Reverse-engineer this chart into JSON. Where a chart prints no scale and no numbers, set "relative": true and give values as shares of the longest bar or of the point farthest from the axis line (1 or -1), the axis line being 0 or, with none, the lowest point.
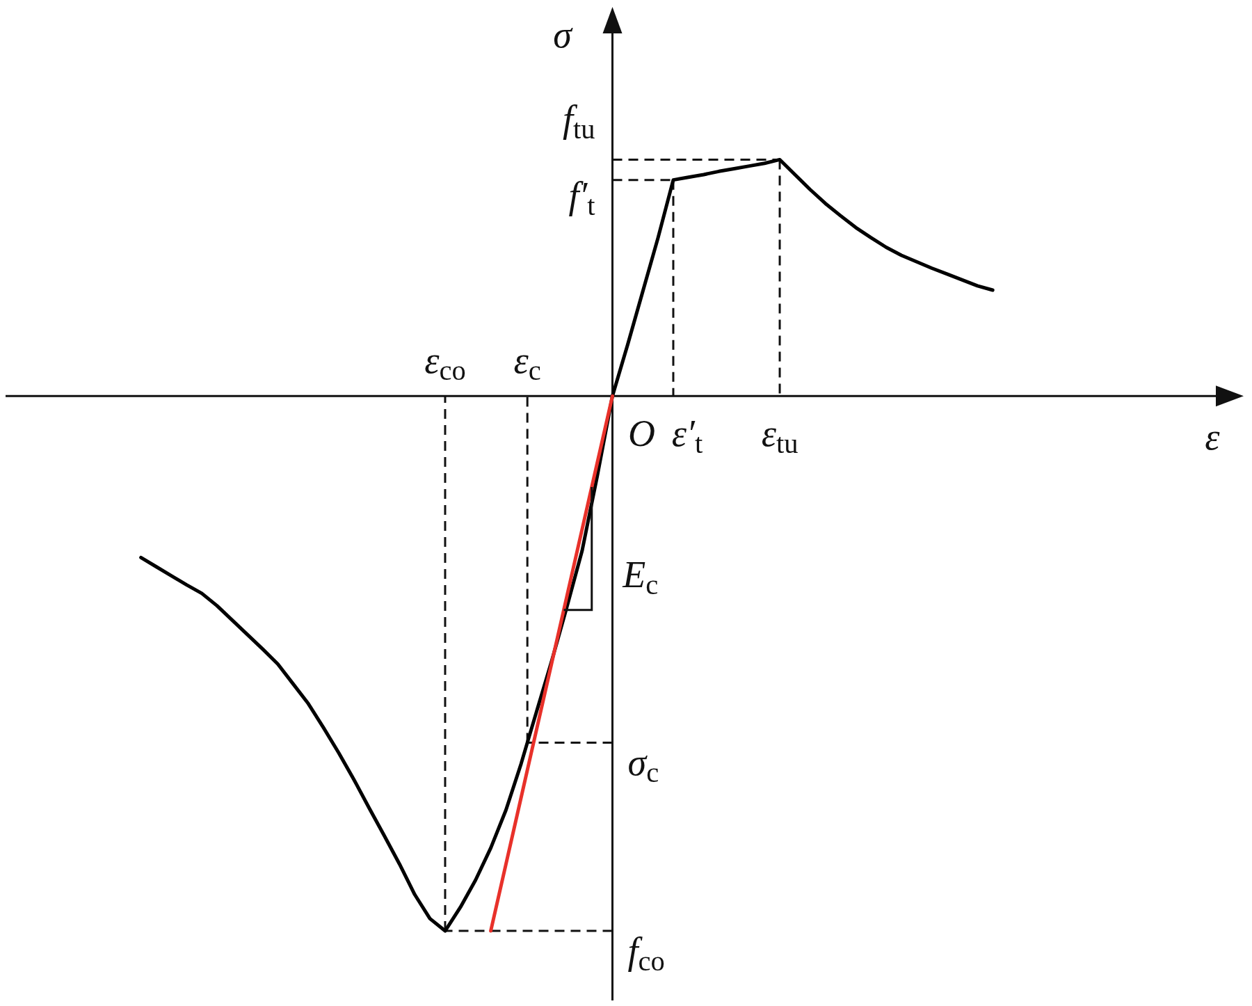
{
  "chart_data": {
    "type": "line",
    "relative": true,
    "ylabel": "σ",
    "categories": [
      null,
      null,
      null,
      null,
      null,
      null,
      null,
      null,
      null,
      null,
      null,
      null,
      null,
      null,
      null,
      null,
      null,
      null,
      null,
      null,
      null,
      null,
      null,
      null,
      null,
      null,
      null,
      null,
      null,
      null,
      null,
      null,
      null,
      null,
      null,
      null,
      null,
      null,
      null,
      null,
      null,
      null,
      null,
      null,
      null,
      null,
      null,
      null,
      null,
      null,
      null,
      null,
      null,
      null,
      null,
      null,
      null
    ],
    "series": [
      {
        "color": "#000000",
        "values": [
          -0.302,
          -0.319,
          -0.336,
          -0.353,
          -0.369,
          -0.392,
          -0.419,
          -0.446,
          -0.473,
          -0.501,
          -0.538,
          -0.575,
          -0.62,
          -0.667,
          -0.717,
          -0.77,
          -0.822,
          -0.875,
          -0.932,
          -0.977,
          -1.0,
          -0.956,
          -0.905,
          -0.845,
          -0.774,
          -0.687,
          -0.591,
          -0.496,
          -0.395,
          -0.29,
          -0.15,
          0,
          0.096,
          0.196,
          0.296,
          0.404,
          0.409,
          0.414,
          0.42,
          0.425,
          0.43,
          0.435,
          0.442,
          0.414,
          0.386,
          0.36,
          0.337,
          0.315,
          0.296,
          0.278,
          0.263,
          0.251,
          0.239,
          0.228,
          0.217,
          0.206,
          0.198
        ]
      },
      {
        "color": "#e8312a",
        "values": [
          null,
          null,
          null,
          null,
          null,
          null,
          null,
          null,
          null,
          null,
          null,
          null,
          null,
          null,
          null,
          null,
          null,
          null,
          null,
          null,
          null,
          null,
          null,
          -1.0,
          -0.875,
          -0.75,
          -0.625,
          -0.5,
          -0.375,
          -0.25,
          -0.125,
          0,
          null,
          null,
          null,
          null,
          null,
          null,
          null,
          null,
          null,
          null,
          null,
          null,
          null,
          null,
          null,
          null,
          null,
          null,
          null,
          null,
          null,
          null,
          null,
          null,
          null
        ]
      }
    ],
    "ref_lines": [
      {
        "axis": "y",
        "value": -1.0,
        "label": "f$_{co}$",
        "line_style": "dashed"
      },
      {
        "axis": "y",
        "value": -0.648,
        "label": "σ$_{c}$",
        "line_style": "dashed"
      },
      {
        "axis": "y",
        "value": 0.404,
        "label": "f′$_{t}$",
        "line_style": "dashed"
      },
      {
        "axis": "y",
        "value": 0.442,
        "label": "f$_{tu}$",
        "line_style": "dashed"
      }
    ],
    "annotations": [
      "ε$_{co}$",
      "ε$_{c}$",
      "O",
      "ε′$_{t}$",
      "ε$_{tu}$",
      "E$_{c}$",
      "ε"
    ]
  }
}
